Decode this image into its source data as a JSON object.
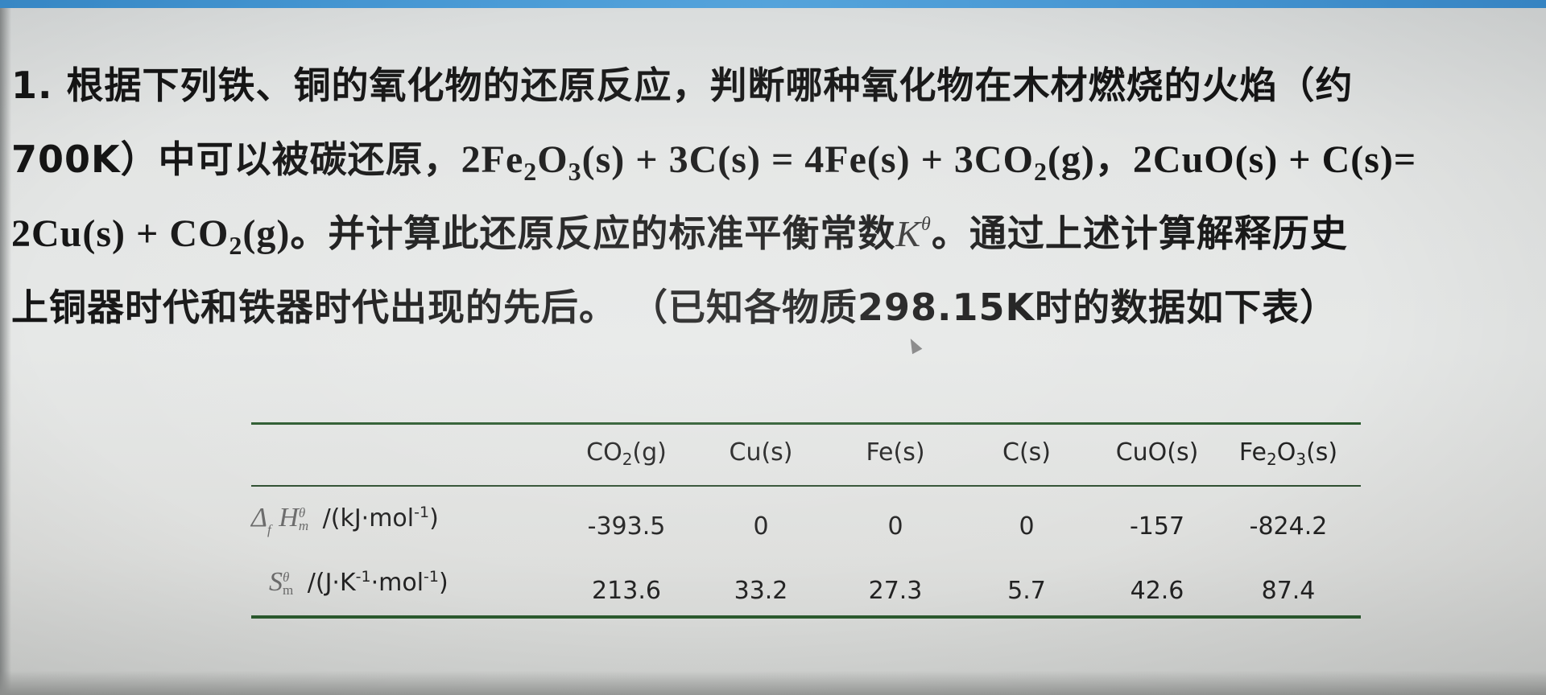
{
  "problem": {
    "line1": {
      "number": "1.",
      "text": " 根据下列铁、铜的氧化物的还原反应，判断哪种氧化物在木材燃烧的火焰（约"
    },
    "line2": {
      "temp": "700K",
      "text_a": "）中可以被碳还原，",
      "eq1_a": "2Fe",
      "eq1_sub1": "2",
      "eq1_b": "O",
      "eq1_sub2": "3",
      "eq1_c": "(s) + 3C(s) = 4Fe(s) + 3CO",
      "eq1_sub3": "2",
      "eq1_d": "(g)",
      "sep": "，",
      "eq2_a": "2CuO(s) + C(s)="
    },
    "line3": {
      "eq2_b": "2Cu(s) + CO",
      "eq2_sub": "2",
      "eq2_c": "(g)",
      "text_a": "。并计算此还原反应的标准平衡常数",
      "k_symbol": "K",
      "k_sup": "θ",
      "text_b": "。通过上述计算解释历史"
    },
    "line4": {
      "text_a": "上铜器时代和铁器时代出现的先后。 （已知各物质",
      "temp": "298.15K",
      "text_b": "时的数据如下表）"
    }
  },
  "table": {
    "headers": [
      {
        "main": "CO",
        "sub": "2",
        "tail": "(g)"
      },
      {
        "main": "Cu(s)",
        "sub": "",
        "tail": ""
      },
      {
        "main": "Fe(s)",
        "sub": "",
        "tail": ""
      },
      {
        "main": "C(s)",
        "sub": "",
        "tail": ""
      },
      {
        "main": "CuO(s)",
        "sub": "",
        "tail": ""
      },
      {
        "main": "Fe",
        "sub": "2",
        "tail": "O",
        "sub2": "3",
        "tail2": "(s)"
      }
    ],
    "row1": {
      "label_delta": "Δ",
      "label_f": "f",
      "label_H": "H",
      "label_theta": "θ",
      "label_m": "m",
      "label_unit": " /(kJ·mol",
      "label_unit_sup": "-1",
      "label_unit_end": ")",
      "values": [
        "-393.5",
        "0",
        "0",
        "0",
        "-157",
        "-824.2"
      ]
    },
    "row2": {
      "label_S": "S",
      "label_theta": "θ",
      "label_m": "m",
      "label_unit": " /(J·K",
      "label_unit_sup1": "-1",
      "label_unit_mid": "·mol",
      "label_unit_sup2": "-1",
      "label_unit_end": ")",
      "values": [
        "213.6",
        "33.2",
        "27.3",
        "5.7",
        "42.6",
        "87.4"
      ]
    }
  }
}
